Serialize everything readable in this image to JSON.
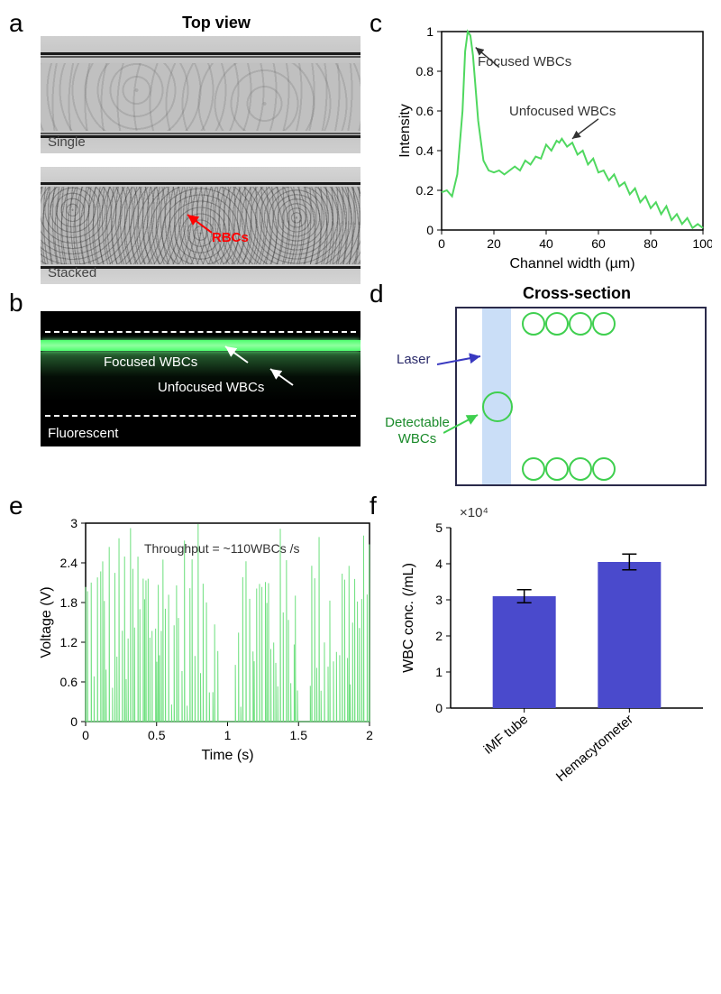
{
  "panelA": {
    "label": "a",
    "title": "Top view",
    "img1_label": "Single",
    "img2_label": "Stacked",
    "rbc_label": "RBCs"
  },
  "panelB": {
    "label": "b",
    "focused_label": "Focused WBCs",
    "unfocused_label": "Unfocused  WBCs",
    "fluo_label": "Fluorescent"
  },
  "panelC": {
    "label": "c",
    "xlabel": "Channel width (µm)",
    "ylabel": "Intensity",
    "xlim": [
      0,
      100
    ],
    "ylim": [
      0,
      1
    ],
    "xticks": [
      0,
      20,
      40,
      60,
      80,
      100
    ],
    "yticks": [
      0,
      0.2,
      0.4,
      0.6,
      0.8,
      1
    ],
    "line_color": "#4fd85f",
    "focused_label": "Focused WBCs",
    "unfocused_label": "Unfocused  WBCs",
    "data": [
      [
        0,
        0.19
      ],
      [
        2,
        0.2
      ],
      [
        4,
        0.17
      ],
      [
        6,
        0.28
      ],
      [
        8,
        0.6
      ],
      [
        9,
        0.9
      ],
      [
        10,
        1.0
      ],
      [
        11,
        0.98
      ],
      [
        12,
        0.88
      ],
      [
        14,
        0.55
      ],
      [
        16,
        0.35
      ],
      [
        18,
        0.3
      ],
      [
        20,
        0.29
      ],
      [
        22,
        0.3
      ],
      [
        24,
        0.28
      ],
      [
        26,
        0.3
      ],
      [
        28,
        0.32
      ],
      [
        30,
        0.3
      ],
      [
        32,
        0.35
      ],
      [
        34,
        0.33
      ],
      [
        36,
        0.37
      ],
      [
        38,
        0.36
      ],
      [
        40,
        0.43
      ],
      [
        42,
        0.4
      ],
      [
        44,
        0.45
      ],
      [
        45,
        0.44
      ],
      [
        46,
        0.46
      ],
      [
        48,
        0.42
      ],
      [
        50,
        0.44
      ],
      [
        52,
        0.38
      ],
      [
        54,
        0.4
      ],
      [
        56,
        0.33
      ],
      [
        58,
        0.36
      ],
      [
        60,
        0.29
      ],
      [
        62,
        0.3
      ],
      [
        64,
        0.25
      ],
      [
        66,
        0.28
      ],
      [
        68,
        0.22
      ],
      [
        70,
        0.24
      ],
      [
        72,
        0.18
      ],
      [
        74,
        0.21
      ],
      [
        76,
        0.14
      ],
      [
        78,
        0.17
      ],
      [
        80,
        0.11
      ],
      [
        82,
        0.14
      ],
      [
        84,
        0.08
      ],
      [
        86,
        0.12
      ],
      [
        88,
        0.05
      ],
      [
        90,
        0.08
      ],
      [
        92,
        0.03
      ],
      [
        94,
        0.06
      ],
      [
        96,
        0.01
      ],
      [
        98,
        0.03
      ],
      [
        100,
        0.01
      ]
    ]
  },
  "panelD": {
    "label": "d",
    "title": "Cross-section",
    "laser_label": "Laser",
    "detect_label": "Detectable WBCs",
    "laser_color": "rgba(150,190,240,0.5)",
    "circle_color": "#3fcf4f",
    "arrow_laser_color": "#3838c0",
    "arrow_detect_color": "#3fcf4f"
  },
  "panelE": {
    "label": "e",
    "xlabel": "Time (s)",
    "ylabel": "Voltage (V)",
    "xlim": [
      0,
      2
    ],
    "ylim": [
      0,
      3
    ],
    "xticks": [
      0,
      0.5,
      1,
      1.5,
      2
    ],
    "yticks": [
      0,
      0.6,
      1.2,
      1.8,
      2.4,
      3
    ],
    "line_color": "#6fe07f",
    "annotation": "Throughput = ~110WBCs /s"
  },
  "panelF": {
    "label": "f",
    "ylabel": "WBC conc. (/mL)",
    "scale_label": "×10⁴",
    "ylim": [
      0,
      5
    ],
    "yticks": [
      0,
      1,
      2,
      3,
      4,
      5
    ],
    "categories": [
      "iMF tube",
      "Hemacytometer"
    ],
    "values": [
      3.1,
      4.05
    ],
    "errors": [
      0.18,
      0.22
    ],
    "bar_color": "#4a4acc"
  }
}
